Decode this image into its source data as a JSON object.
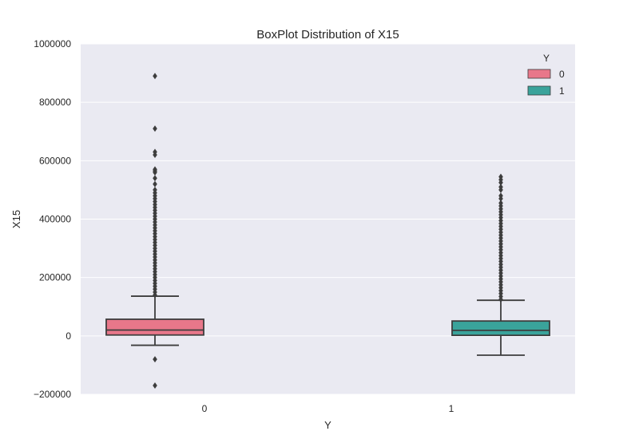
{
  "chart_data": {
    "type": "box",
    "title": "BoxPlot Distribution of X15",
    "xlabel": "Y",
    "ylabel": "X15",
    "categories": [
      "0",
      "1"
    ],
    "ylim": [
      -200000,
      1000000
    ],
    "yticks": [
      -200000,
      0,
      200000,
      400000,
      600000,
      800000,
      1000000
    ],
    "ytick_labels": [
      "−200000",
      "0",
      "200000",
      "400000",
      "600000",
      "800000",
      "1000000"
    ],
    "grid": true,
    "legend": {
      "title": "Y",
      "position": "top-right",
      "entries": [
        "0",
        "1"
      ]
    },
    "colors": {
      "0": "#e8778a",
      "1": "#3aa39b",
      "plot_bg": "#eaeaf2",
      "grid": "#ffffff",
      "edge": "#3d3d3d"
    },
    "boxes": [
      {
        "category": "0",
        "whisker_low": -32000,
        "q1": 3000,
        "median": 20000,
        "q3": 57000,
        "whisker_high": 136000,
        "outliers": [
          -170000,
          -80000,
          140000,
          150000,
          160000,
          170000,
          180000,
          190000,
          200000,
          210000,
          220000,
          230000,
          240000,
          250000,
          260000,
          270000,
          280000,
          290000,
          300000,
          310000,
          320000,
          330000,
          340000,
          350000,
          360000,
          370000,
          380000,
          390000,
          400000,
          410000,
          420000,
          430000,
          440000,
          450000,
          460000,
          470000,
          480000,
          490000,
          500000,
          520000,
          540000,
          560000,
          565000,
          570000,
          620000,
          630000,
          710000,
          890000
        ]
      },
      {
        "category": "1",
        "whisker_low": -66000,
        "q1": 2000,
        "median": 19000,
        "q3": 51000,
        "whisker_high": 122000,
        "outliers": [
          125000,
          135000,
          145000,
          155000,
          165000,
          175000,
          185000,
          195000,
          205000,
          215000,
          225000,
          235000,
          245000,
          255000,
          265000,
          275000,
          285000,
          295000,
          305000,
          315000,
          325000,
          335000,
          345000,
          355000,
          365000,
          375000,
          385000,
          395000,
          405000,
          415000,
          425000,
          435000,
          445000,
          455000,
          470000,
          480000,
          500000,
          510000,
          525000,
          535000,
          545000
        ]
      }
    ]
  }
}
